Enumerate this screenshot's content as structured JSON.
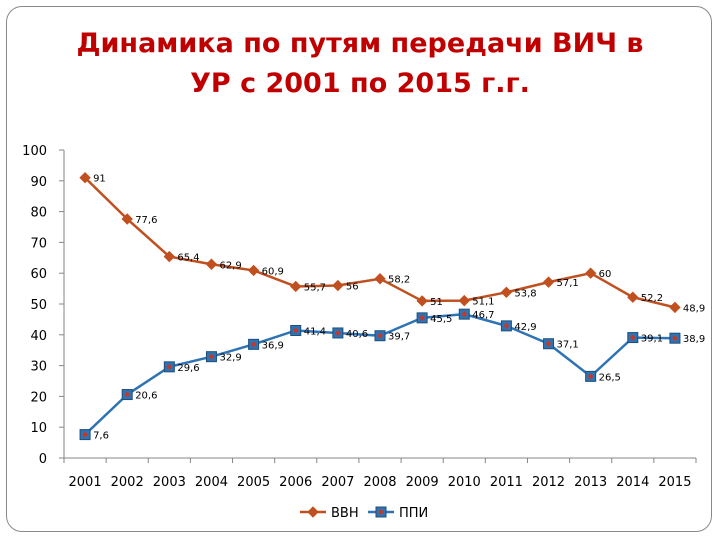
{
  "slide": {
    "title_line1": "Динамика по путям передачи ВИЧ в",
    "title_line2": "УР с 2001 по 2015 г.г."
  },
  "chart_data": {
    "type": "line",
    "title": "Динамика по путям передачи ВИЧ в УР с 2001 по 2015 г.г.",
    "categories": [
      "2001",
      "2002",
      "2003",
      "2004",
      "2005",
      "2006",
      "2007",
      "2008",
      "2009",
      "2010",
      "2011",
      "2012",
      "2013",
      "2014",
      "2015"
    ],
    "series": [
      {
        "name": "ВВН",
        "color": "#c0501f",
        "marker": "diamond",
        "values": [
          91,
          77.6,
          65.4,
          62.9,
          60.9,
          55.7,
          56,
          58.2,
          51,
          51.1,
          53.8,
          57.1,
          60,
          52.2,
          48.9
        ],
        "labels": [
          "91",
          "77,6",
          "65,4",
          "62,9",
          "60,9",
          "55,7",
          "56",
          "58,2",
          "51",
          "51,1",
          "53,8",
          "57,1",
          "60",
          "52,2",
          "48,9"
        ]
      },
      {
        "name": "ППИ",
        "color": "#2e74b5",
        "marker": "square",
        "values": [
          7.6,
          20.6,
          29.6,
          32.9,
          36.9,
          41.4,
          40.6,
          39.7,
          45.5,
          46.7,
          42.9,
          37.1,
          26.5,
          39.1,
          38.9
        ],
        "labels": [
          "7,6",
          "20,6",
          "29,6",
          "32,9",
          "36,9",
          "41,4",
          "40,6",
          "39,7",
          "45,5",
          "46,7",
          "42,9",
          "37,1",
          "26,5",
          "39,1",
          "38,9"
        ]
      }
    ],
    "yticks": [
      "0",
      "10",
      "20",
      "30",
      "40",
      "50",
      "60",
      "70",
      "80",
      "90",
      "100"
    ],
    "ylim": [
      0,
      100
    ],
    "grid": false,
    "legend": "bottom"
  }
}
